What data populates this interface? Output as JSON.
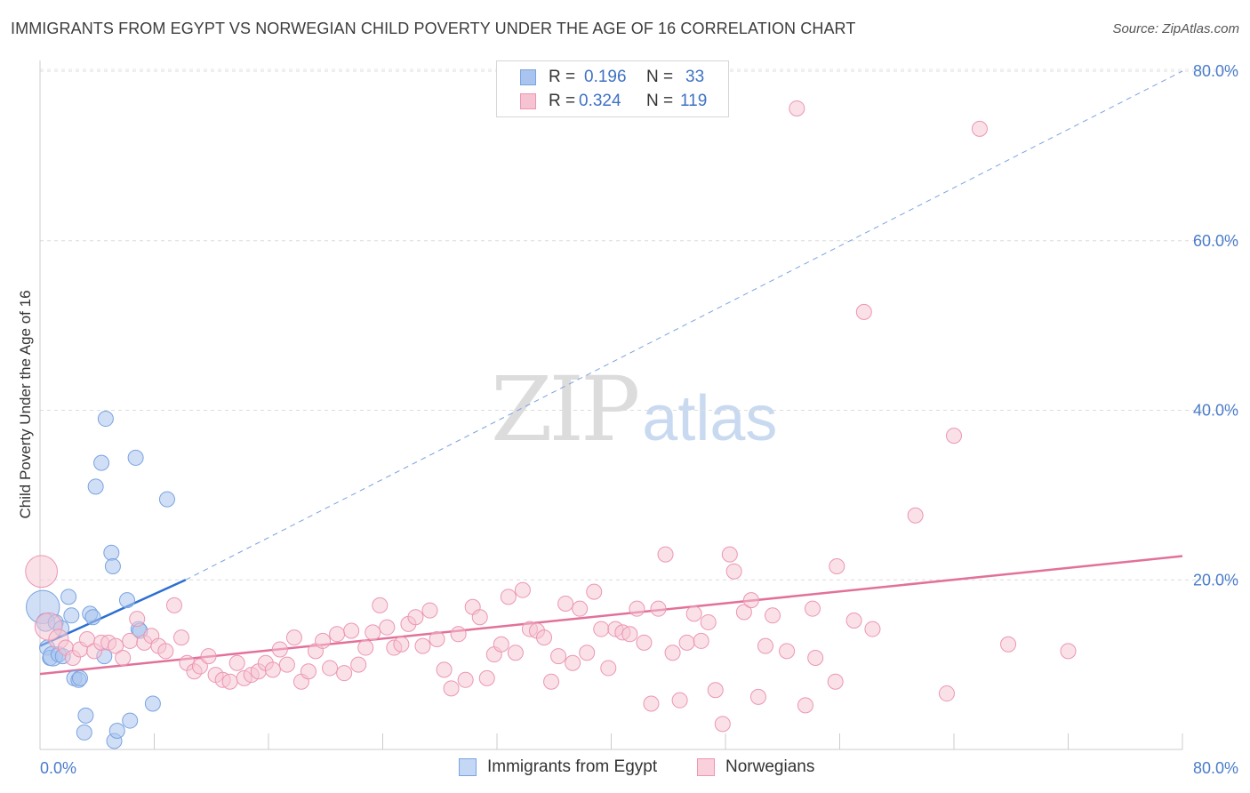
{
  "title": "IMMIGRANTS FROM EGYPT VS NORWEGIAN CHILD POVERTY UNDER THE AGE OF 16 CORRELATION CHART",
  "source": "Source: ZipAtlas.com",
  "watermark": {
    "left": "ZIP",
    "right": "atlas"
  },
  "legend": {
    "rows": [
      {
        "r_label": "R =",
        "r_value": "0.196",
        "n_label": "N =",
        "n_value": "33",
        "color": "#a9c4ee",
        "border": "#7aa3e0"
      },
      {
        "r_label": "R =",
        "r_value": "0.324",
        "n_label": "N =",
        "n_value": "119",
        "color": "#f6c3d2",
        "border": "#ec96b2"
      }
    ]
  },
  "bottom_legend": [
    {
      "label": "Immigrants from Egypt",
      "color": "#c4d8f5",
      "border": "#7aa3e0"
    },
    {
      "label": "Norwegians",
      "color": "#f9d0dc",
      "border": "#ec96b2"
    }
  ],
  "chart_data": {
    "type": "scatter",
    "title": "IMMIGRANTS FROM EGYPT VS NORWEGIAN CHILD POVERTY UNDER THE AGE OF 16 CORRELATION CHART",
    "xlabel": "",
    "ylabel": "Child Poverty Under the Age of 16",
    "xlim": [
      0,
      80
    ],
    "ylim": [
      0,
      80
    ],
    "x_tick_labels": [
      "0.0%",
      "80.0%"
    ],
    "y_tick_labels": [
      "20.0%",
      "40.0%",
      "60.0%",
      "80.0%"
    ],
    "y_tick_values": [
      20,
      40,
      60,
      80
    ],
    "grid": "horizontal dashed",
    "series": [
      {
        "name": "Immigrants from Egypt",
        "color": "#7aa3e0",
        "fill": "rgba(169,196,238,0.55)",
        "trend": {
          "x1": 0,
          "y1": 12.2,
          "x2": 10.2,
          "y2": 20.0,
          "dashed_to_x": 80,
          "dashed_to_y": 80.0,
          "color": "#2c6fd1"
        },
        "points": [
          {
            "x": 0.2,
            "y": 16.8,
            "s": 2.2
          },
          {
            "x": 0.4,
            "y": 15.0,
            "s": 1.2
          },
          {
            "x": 0.5,
            "y": 12.0,
            "s": 1
          },
          {
            "x": 0.7,
            "y": 10.8,
            "s": 1
          },
          {
            "x": 0.9,
            "y": 11.0,
            "s": 1.3
          },
          {
            "x": 1.1,
            "y": 15.0,
            "s": 1
          },
          {
            "x": 1.3,
            "y": 11.2,
            "s": 1
          },
          {
            "x": 1.5,
            "y": 14.3,
            "s": 1
          },
          {
            "x": 1.6,
            "y": 11.0,
            "s": 1
          },
          {
            "x": 2.0,
            "y": 18.0,
            "s": 1
          },
          {
            "x": 2.2,
            "y": 15.8,
            "s": 1
          },
          {
            "x": 2.4,
            "y": 8.4,
            "s": 1
          },
          {
            "x": 2.7,
            "y": 8.2,
            "s": 1
          },
          {
            "x": 2.8,
            "y": 8.4,
            "s": 1
          },
          {
            "x": 3.2,
            "y": 4.0,
            "s": 1
          },
          {
            "x": 3.1,
            "y": 2.0,
            "s": 1
          },
          {
            "x": 3.5,
            "y": 16.0,
            "s": 1
          },
          {
            "x": 3.7,
            "y": 15.6,
            "s": 1
          },
          {
            "x": 3.9,
            "y": 31.0,
            "s": 1
          },
          {
            "x": 4.3,
            "y": 33.8,
            "s": 1
          },
          {
            "x": 4.5,
            "y": 11.0,
            "s": 1
          },
          {
            "x": 4.6,
            "y": 39.0,
            "s": 1
          },
          {
            "x": 5.0,
            "y": 23.2,
            "s": 1
          },
          {
            "x": 5.1,
            "y": 21.6,
            "s": 1
          },
          {
            "x": 5.2,
            "y": 1.0,
            "s": 1
          },
          {
            "x": 5.4,
            "y": 2.2,
            "s": 1
          },
          {
            "x": 6.1,
            "y": 17.6,
            "s": 1
          },
          {
            "x": 6.3,
            "y": 3.4,
            "s": 1
          },
          {
            "x": 6.7,
            "y": 34.4,
            "s": 1
          },
          {
            "x": 6.9,
            "y": 14.2,
            "s": 1
          },
          {
            "x": 7.0,
            "y": 14.0,
            "s": 1
          },
          {
            "x": 7.9,
            "y": 5.4,
            "s": 1
          },
          {
            "x": 8.9,
            "y": 29.5,
            "s": 1
          }
        ]
      },
      {
        "name": "Norwegians",
        "color": "#ec96b2",
        "fill": "rgba(246,195,210,0.5)",
        "trend": {
          "x1": 0,
          "y1": 8.9,
          "x2": 80,
          "y2": 22.8,
          "color": "#e2719a"
        },
        "points": [
          {
            "x": 0.1,
            "y": 21.0,
            "s": 2.1
          },
          {
            "x": 0.6,
            "y": 14.5,
            "s": 1.8
          },
          {
            "x": 1.3,
            "y": 13.0,
            "s": 1.3
          },
          {
            "x": 1.8,
            "y": 12.0,
            "s": 1
          },
          {
            "x": 2.3,
            "y": 10.8,
            "s": 1
          },
          {
            "x": 2.8,
            "y": 11.8,
            "s": 1
          },
          {
            "x": 3.3,
            "y": 13.0,
            "s": 1
          },
          {
            "x": 3.8,
            "y": 11.6,
            "s": 1
          },
          {
            "x": 4.3,
            "y": 12.6,
            "s": 1
          },
          {
            "x": 4.8,
            "y": 12.6,
            "s": 1
          },
          {
            "x": 5.3,
            "y": 12.2,
            "s": 1
          },
          {
            "x": 5.8,
            "y": 10.8,
            "s": 1
          },
          {
            "x": 6.3,
            "y": 12.8,
            "s": 1
          },
          {
            "x": 6.8,
            "y": 15.4,
            "s": 1
          },
          {
            "x": 7.3,
            "y": 12.6,
            "s": 1
          },
          {
            "x": 7.8,
            "y": 13.4,
            "s": 1
          },
          {
            "x": 8.3,
            "y": 12.2,
            "s": 1
          },
          {
            "x": 8.8,
            "y": 11.6,
            "s": 1
          },
          {
            "x": 9.4,
            "y": 17.0,
            "s": 1
          },
          {
            "x": 9.9,
            "y": 13.2,
            "s": 1
          },
          {
            "x": 10.3,
            "y": 10.2,
            "s": 1
          },
          {
            "x": 10.8,
            "y": 9.2,
            "s": 1
          },
          {
            "x": 11.2,
            "y": 9.8,
            "s": 1
          },
          {
            "x": 11.8,
            "y": 11.0,
            "s": 1
          },
          {
            "x": 12.3,
            "y": 8.8,
            "s": 1
          },
          {
            "x": 12.8,
            "y": 8.2,
            "s": 1
          },
          {
            "x": 13.3,
            "y": 8.0,
            "s": 1
          },
          {
            "x": 13.8,
            "y": 10.2,
            "s": 1
          },
          {
            "x": 14.3,
            "y": 8.4,
            "s": 1
          },
          {
            "x": 14.8,
            "y": 8.8,
            "s": 1
          },
          {
            "x": 15.3,
            "y": 9.2,
            "s": 1
          },
          {
            "x": 15.8,
            "y": 10.2,
            "s": 1
          },
          {
            "x": 16.3,
            "y": 9.4,
            "s": 1
          },
          {
            "x": 16.8,
            "y": 11.8,
            "s": 1
          },
          {
            "x": 17.3,
            "y": 10.0,
            "s": 1
          },
          {
            "x": 17.8,
            "y": 13.2,
            "s": 1
          },
          {
            "x": 18.3,
            "y": 8.0,
            "s": 1
          },
          {
            "x": 18.8,
            "y": 9.2,
            "s": 1
          },
          {
            "x": 19.3,
            "y": 11.6,
            "s": 1
          },
          {
            "x": 19.8,
            "y": 12.8,
            "s": 1
          },
          {
            "x": 20.3,
            "y": 9.6,
            "s": 1
          },
          {
            "x": 20.8,
            "y": 13.6,
            "s": 1
          },
          {
            "x": 21.3,
            "y": 9.0,
            "s": 1
          },
          {
            "x": 21.8,
            "y": 14.0,
            "s": 1
          },
          {
            "x": 22.3,
            "y": 10.0,
            "s": 1
          },
          {
            "x": 22.8,
            "y": 12.0,
            "s": 1
          },
          {
            "x": 23.3,
            "y": 13.8,
            "s": 1
          },
          {
            "x": 23.8,
            "y": 17.0,
            "s": 1
          },
          {
            "x": 24.3,
            "y": 14.4,
            "s": 1
          },
          {
            "x": 24.8,
            "y": 12.0,
            "s": 1
          },
          {
            "x": 25.3,
            "y": 12.4,
            "s": 1
          },
          {
            "x": 25.8,
            "y": 14.8,
            "s": 1
          },
          {
            "x": 26.3,
            "y": 15.6,
            "s": 1
          },
          {
            "x": 26.8,
            "y": 12.2,
            "s": 1
          },
          {
            "x": 27.3,
            "y": 16.4,
            "s": 1
          },
          {
            "x": 27.8,
            "y": 13.0,
            "s": 1
          },
          {
            "x": 28.3,
            "y": 9.4,
            "s": 1
          },
          {
            "x": 28.8,
            "y": 7.2,
            "s": 1
          },
          {
            "x": 29.3,
            "y": 13.6,
            "s": 1
          },
          {
            "x": 29.8,
            "y": 8.2,
            "s": 1
          },
          {
            "x": 30.3,
            "y": 16.8,
            "s": 1
          },
          {
            "x": 30.8,
            "y": 15.6,
            "s": 1
          },
          {
            "x": 31.3,
            "y": 8.4,
            "s": 1
          },
          {
            "x": 31.8,
            "y": 11.2,
            "s": 1
          },
          {
            "x": 32.3,
            "y": 12.4,
            "s": 1
          },
          {
            "x": 32.8,
            "y": 18.0,
            "s": 1
          },
          {
            "x": 33.3,
            "y": 11.4,
            "s": 1
          },
          {
            "x": 33.8,
            "y": 18.8,
            "s": 1
          },
          {
            "x": 34.3,
            "y": 14.2,
            "s": 1
          },
          {
            "x": 34.8,
            "y": 14.0,
            "s": 1
          },
          {
            "x": 35.3,
            "y": 13.2,
            "s": 1
          },
          {
            "x": 35.8,
            "y": 8.0,
            "s": 1
          },
          {
            "x": 36.3,
            "y": 11.0,
            "s": 1
          },
          {
            "x": 36.8,
            "y": 17.2,
            "s": 1
          },
          {
            "x": 37.3,
            "y": 10.2,
            "s": 1
          },
          {
            "x": 37.8,
            "y": 16.6,
            "s": 1
          },
          {
            "x": 38.3,
            "y": 11.4,
            "s": 1
          },
          {
            "x": 38.8,
            "y": 18.6,
            "s": 1
          },
          {
            "x": 39.3,
            "y": 14.2,
            "s": 1
          },
          {
            "x": 39.8,
            "y": 9.6,
            "s": 1
          },
          {
            "x": 40.3,
            "y": 14.2,
            "s": 1
          },
          {
            "x": 40.8,
            "y": 13.8,
            "s": 1
          },
          {
            "x": 41.3,
            "y": 13.6,
            "s": 1
          },
          {
            "x": 41.8,
            "y": 16.6,
            "s": 1
          },
          {
            "x": 42.3,
            "y": 12.6,
            "s": 1
          },
          {
            "x": 42.8,
            "y": 5.4,
            "s": 1
          },
          {
            "x": 43.3,
            "y": 16.6,
            "s": 1
          },
          {
            "x": 43.8,
            "y": 23.0,
            "s": 1
          },
          {
            "x": 44.3,
            "y": 11.4,
            "s": 1
          },
          {
            "x": 44.8,
            "y": 5.8,
            "s": 1
          },
          {
            "x": 45.3,
            "y": 12.6,
            "s": 1
          },
          {
            "x": 45.8,
            "y": 16.0,
            "s": 1
          },
          {
            "x": 46.3,
            "y": 12.8,
            "s": 1
          },
          {
            "x": 46.8,
            "y": 15.0,
            "s": 1
          },
          {
            "x": 47.3,
            "y": 7.0,
            "s": 1
          },
          {
            "x": 47.8,
            "y": 3.0,
            "s": 1
          },
          {
            "x": 48.3,
            "y": 23.0,
            "s": 1
          },
          {
            "x": 48.6,
            "y": 21.0,
            "s": 1
          },
          {
            "x": 49.3,
            "y": 16.2,
            "s": 1
          },
          {
            "x": 49.8,
            "y": 17.6,
            "s": 1
          },
          {
            "x": 50.3,
            "y": 6.2,
            "s": 1
          },
          {
            "x": 50.8,
            "y": 12.2,
            "s": 1
          },
          {
            "x": 51.3,
            "y": 15.8,
            "s": 1
          },
          {
            "x": 52.3,
            "y": 11.6,
            "s": 1
          },
          {
            "x": 53.0,
            "y": 75.6,
            "s": 1
          },
          {
            "x": 53.6,
            "y": 5.2,
            "s": 1
          },
          {
            "x": 54.1,
            "y": 16.6,
            "s": 1
          },
          {
            "x": 54.3,
            "y": 10.8,
            "s": 1
          },
          {
            "x": 55.8,
            "y": 21.6,
            "s": 1
          },
          {
            "x": 55.7,
            "y": 8.0,
            "s": 1
          },
          {
            "x": 57.0,
            "y": 15.2,
            "s": 1
          },
          {
            "x": 57.7,
            "y": 51.6,
            "s": 1
          },
          {
            "x": 58.3,
            "y": 14.2,
            "s": 1
          },
          {
            "x": 61.3,
            "y": 27.6,
            "s": 1
          },
          {
            "x": 63.5,
            "y": 6.6,
            "s": 1
          },
          {
            "x": 64.0,
            "y": 37.0,
            "s": 1
          },
          {
            "x": 65.8,
            "y": 73.2,
            "s": 1
          },
          {
            "x": 67.8,
            "y": 12.4,
            "s": 1
          },
          {
            "x": 72.0,
            "y": 11.6,
            "s": 1
          }
        ]
      }
    ]
  }
}
